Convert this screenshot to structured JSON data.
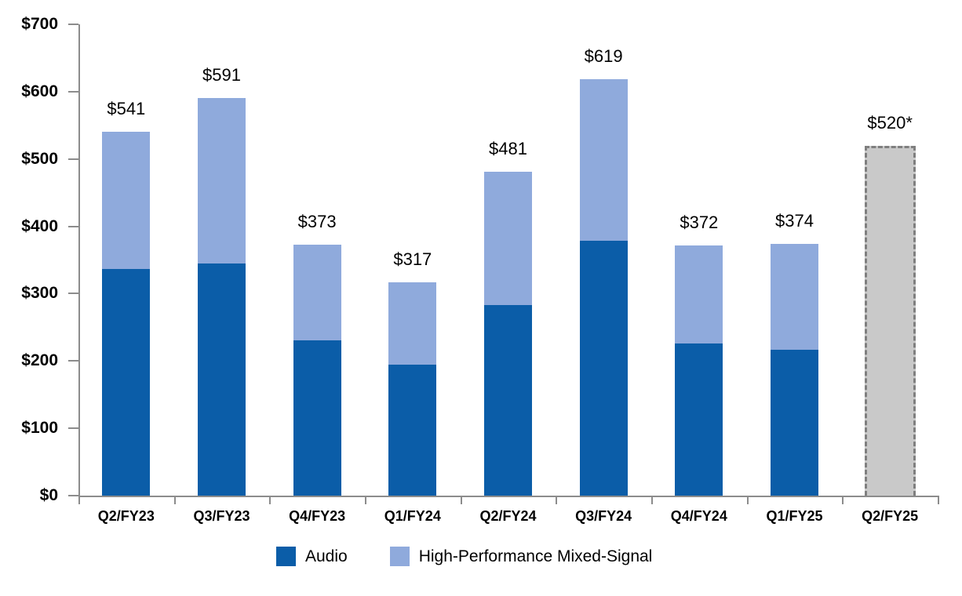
{
  "chart_data": {
    "type": "bar",
    "subtype": "stacked",
    "categories": [
      "Q2/FY23",
      "Q3/FY23",
      "Q4/FY23",
      "Q1/FY24",
      "Q2/FY24",
      "Q3/FY24",
      "Q4/FY24",
      "Q1/FY25",
      "Q2/FY25"
    ],
    "series": [
      {
        "name": "Audio",
        "color": "#0b5da8",
        "values": [
          337,
          345,
          231,
          194,
          283,
          378,
          226,
          217,
          null
        ]
      },
      {
        "name": "High-Performance Mixed-Signal",
        "color": "#8faadc",
        "values": [
          204,
          246,
          142,
          123,
          198,
          241,
          146,
          157,
          null
        ]
      }
    ],
    "totals": [
      541,
      591,
      373,
      317,
      481,
      619,
      372,
      374,
      520
    ],
    "total_labels": [
      "$541",
      "$591",
      "$373",
      "$317",
      "$481",
      "$619",
      "$372",
      "$374",
      "$520*"
    ],
    "guidance_bar": {
      "index": 8,
      "value": 520,
      "label": "$520*",
      "fill_color": "#c9c9c9",
      "border_color": "#7f7f7f",
      "border_style": "dashed"
    },
    "ylim": [
      0,
      700
    ],
    "ytick_interval": 100,
    "ytick_labels": [
      "$0",
      "$100",
      "$200",
      "$300",
      "$400",
      "$500",
      "$600",
      "$700"
    ],
    "grid": "off",
    "axis_color": "#8c8c8c",
    "legend_position": "bottom-center",
    "legend": [
      {
        "label": "Audio",
        "color": "#0b5da8"
      },
      {
        "label": "High-Performance Mixed-Signal",
        "color": "#8faadc"
      }
    ]
  }
}
